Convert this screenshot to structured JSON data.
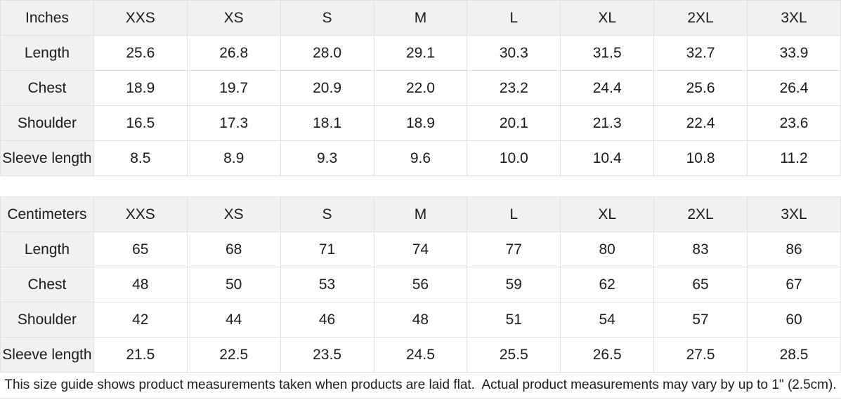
{
  "colors": {
    "header_bg": "#f1f1f1",
    "border": "#e0e0e0",
    "text": "#1b1b1b",
    "background": "#ffffff"
  },
  "size_tables": [
    {
      "unit_label": "Inches",
      "columns": [
        "XXS",
        "XS",
        "S",
        "M",
        "L",
        "XL",
        "2XL",
        "3XL"
      ],
      "rows": [
        {
          "label": "Length",
          "values": [
            "25.6",
            "26.8",
            "28.0",
            "29.1",
            "30.3",
            "31.5",
            "32.7",
            "33.9"
          ]
        },
        {
          "label": "Chest",
          "values": [
            "18.9",
            "19.7",
            "20.9",
            "22.0",
            "23.2",
            "24.4",
            "25.6",
            "26.4"
          ]
        },
        {
          "label": "Shoulder",
          "values": [
            "16.5",
            "17.3",
            "18.1",
            "18.9",
            "20.1",
            "21.3",
            "22.4",
            "23.6"
          ]
        },
        {
          "label": "Sleeve length",
          "values": [
            "8.5",
            "8.9",
            "9.3",
            "9.6",
            "10.0",
            "10.4",
            "10.8",
            "11.2"
          ]
        }
      ]
    },
    {
      "unit_label": "Centimeters",
      "columns": [
        "XXS",
        "XS",
        "S",
        "M",
        "L",
        "XL",
        "2XL",
        "3XL"
      ],
      "rows": [
        {
          "label": "Length",
          "values": [
            "65",
            "68",
            "71",
            "74",
            "77",
            "80",
            "83",
            "86"
          ]
        },
        {
          "label": "Chest",
          "values": [
            "48",
            "50",
            "53",
            "56",
            "59",
            "62",
            "65",
            "67"
          ]
        },
        {
          "label": "Shoulder",
          "values": [
            "42",
            "44",
            "46",
            "48",
            "51",
            "54",
            "57",
            "60"
          ]
        },
        {
          "label": "Sleeve length",
          "values": [
            "21.5",
            "22.5",
            "23.5",
            "24.5",
            "25.5",
            "26.5",
            "27.5",
            "28.5"
          ]
        }
      ]
    }
  ],
  "footer": {
    "note": "This size guide shows product measurements taken when products are laid flat.  Actual product measurements may vary by up to 1\" (2.5cm)."
  }
}
